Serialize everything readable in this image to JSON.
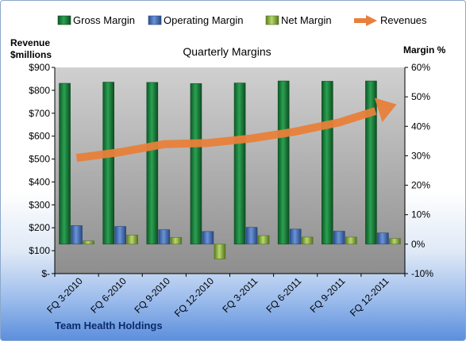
{
  "chart_data": {
    "type": "bar",
    "title": "Quarterly Margins",
    "categories": [
      "FQ 3-2010",
      "FQ 6-2010",
      "FQ 9-2010",
      "FQ 12-2010",
      "FQ 3-2011",
      "FQ 6-2011",
      "FQ 9-2011",
      "FQ 12-2011"
    ],
    "series": [
      {
        "name": "Gross Margin",
        "axis": "right",
        "color": "#1e7a3c",
        "values": [
          54.6,
          55.0,
          54.9,
          54.5,
          54.7,
          55.4,
          55.3,
          55.4
        ]
      },
      {
        "name": "Operating Margin",
        "axis": "right",
        "color": "#4a72b8",
        "values": [
          6.3,
          6.0,
          4.9,
          4.3,
          5.7,
          5.1,
          4.4,
          3.8
        ]
      },
      {
        "name": "Net Margin",
        "axis": "right",
        "color": "#8db43c",
        "values": [
          1.1,
          3.1,
          2.3,
          -5.0,
          2.9,
          2.4,
          2.4,
          1.9
        ]
      },
      {
        "name": "Revenues",
        "axis": "left",
        "type": "line",
        "color": "#e8803a",
        "values": [
          505,
          530,
          565,
          570,
          590,
          620,
          660,
          720
        ]
      }
    ],
    "ylabel_left": "Revenue $millions",
    "ylabel_right": "Margin %",
    "ylim_left": [
      0,
      900
    ],
    "ylim_right": [
      -10,
      60
    ],
    "yticks_left": [
      "$-",
      "$100",
      "$200",
      "$300",
      "$400",
      "$500",
      "$600",
      "$700",
      "$800",
      "$900"
    ],
    "yticks_right": [
      "-10%",
      "0%",
      "10%",
      "20%",
      "30%",
      "40%",
      "50%",
      "60%"
    ],
    "legend_position": "top",
    "grid": false,
    "footer": "Team Health Holdings"
  },
  "colors": {
    "plot_top": "#d0d0d0",
    "plot_bottom": "#8e8e8e",
    "frame_border": "#8aa8cc",
    "footer_text": "#0b2a6b"
  }
}
